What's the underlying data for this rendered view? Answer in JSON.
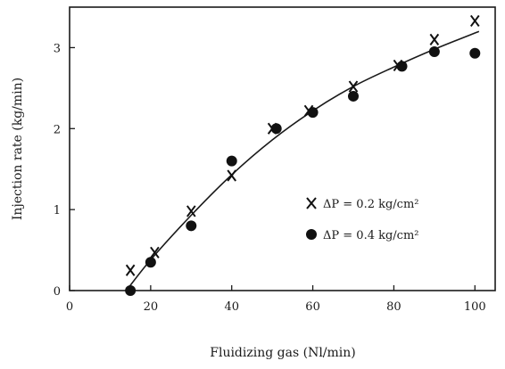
{
  "chart_data": {
    "type": "scatter",
    "title": "",
    "xlabel": "Fluidizing gas (Nl/min)",
    "ylabel": "Injection rate (kg/min)",
    "xlim": [
      0,
      105
    ],
    "ylim": [
      0,
      3.5
    ],
    "x_ticks": [
      0,
      20,
      40,
      60,
      80,
      100
    ],
    "y_ticks": [
      0,
      1,
      2,
      3
    ],
    "grid": false,
    "legend_position": "right",
    "series": [
      {
        "name": "ΔP = 0.2 kg/cm²",
        "marker": "x",
        "color": "#111111",
        "points": [
          {
            "x": 15,
            "y": 0.25
          },
          {
            "x": 21,
            "y": 0.47
          },
          {
            "x": 30,
            "y": 0.98
          },
          {
            "x": 40,
            "y": 1.42
          },
          {
            "x": 50,
            "y": 2.0
          },
          {
            "x": 59,
            "y": 2.22
          },
          {
            "x": 70,
            "y": 2.52
          },
          {
            "x": 81,
            "y": 2.78
          },
          {
            "x": 90,
            "y": 3.1
          },
          {
            "x": 100,
            "y": 3.33
          }
        ]
      },
      {
        "name": "ΔP = 0.4 kg/cm²",
        "marker": "circle",
        "color": "#111111",
        "points": [
          {
            "x": 15,
            "y": 0.0
          },
          {
            "x": 20,
            "y": 0.35
          },
          {
            "x": 30,
            "y": 0.8
          },
          {
            "x": 40,
            "y": 1.6
          },
          {
            "x": 51,
            "y": 2.0
          },
          {
            "x": 60,
            "y": 2.2
          },
          {
            "x": 70,
            "y": 2.4
          },
          {
            "x": 82,
            "y": 2.77
          },
          {
            "x": 90,
            "y": 2.95
          },
          {
            "x": 100,
            "y": 2.93
          }
        ]
      }
    ],
    "fit_curve": [
      {
        "x": 14,
        "y": 0.0
      },
      {
        "x": 20,
        "y": 0.38
      },
      {
        "x": 30,
        "y": 0.93
      },
      {
        "x": 40,
        "y": 1.43
      },
      {
        "x": 50,
        "y": 1.86
      },
      {
        "x": 60,
        "y": 2.22
      },
      {
        "x": 70,
        "y": 2.52
      },
      {
        "x": 80,
        "y": 2.76
      },
      {
        "x": 90,
        "y": 2.98
      },
      {
        "x": 101,
        "y": 3.2
      }
    ]
  }
}
